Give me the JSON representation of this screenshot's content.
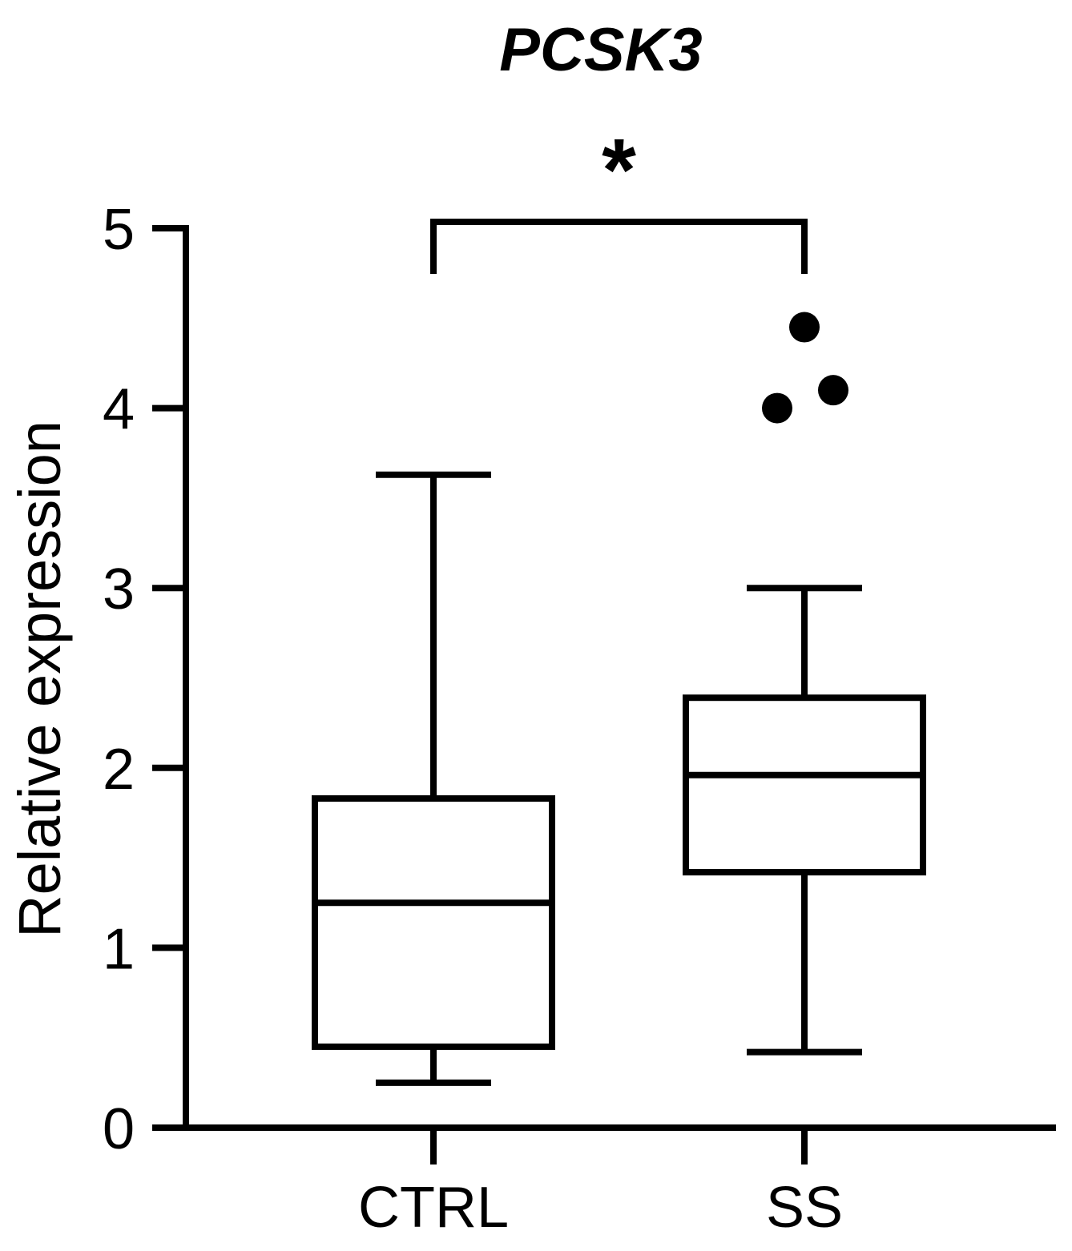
{
  "chart_data": {
    "type": "box",
    "title": "PCSK3",
    "ylabel": "Relative expression",
    "xlabel": "",
    "ylim": [
      0,
      5
    ],
    "yticks": [
      0,
      1,
      2,
      3,
      4,
      5
    ],
    "categories": [
      "CTRL",
      "SS"
    ],
    "boxes": [
      {
        "category": "CTRL",
        "whisker_low": 0.25,
        "q1": 0.45,
        "median": 1.25,
        "q3": 1.83,
        "whisker_high": 3.63,
        "outliers": []
      },
      {
        "category": "SS",
        "whisker_low": 0.42,
        "q1": 1.42,
        "median": 1.96,
        "q3": 2.39,
        "whisker_high": 3.0,
        "outliers": [
          4.45,
          4.1,
          4.0
        ]
      }
    ],
    "significance": {
      "between": [
        "CTRL",
        "SS"
      ],
      "label": "*"
    },
    "grid": false,
    "legend": "none"
  }
}
